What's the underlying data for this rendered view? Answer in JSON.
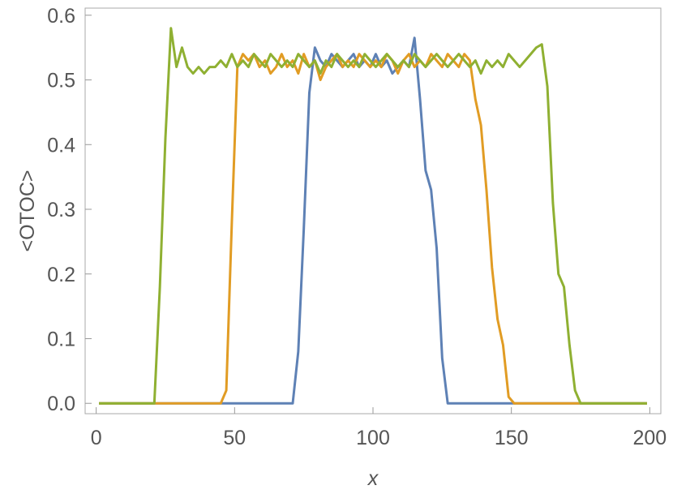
{
  "chart_data": {
    "type": "line",
    "x_label": "x",
    "y_label": "<OTOC>",
    "xlim": [
      -4,
      204
    ],
    "ylim": [
      -0.016,
      0.611
    ],
    "xticks": [
      0,
      50,
      100,
      150,
      200
    ],
    "yticks": [
      {
        "value": 0,
        "label": "0.0"
      },
      0.1,
      0.2,
      0.3,
      0.4,
      0.5,
      0.6
    ],
    "x": [
      1,
      3,
      5,
      7,
      9,
      11,
      13,
      15,
      17,
      19,
      21,
      23,
      25,
      27,
      29,
      31,
      33,
      35,
      37,
      39,
      41,
      43,
      45,
      47,
      49,
      51,
      53,
      55,
      57,
      59,
      61,
      63,
      65,
      67,
      69,
      71,
      73,
      75,
      77,
      79,
      81,
      83,
      85,
      87,
      89,
      91,
      93,
      95,
      97,
      99,
      101,
      103,
      105,
      107,
      109,
      111,
      113,
      115,
      117,
      119,
      121,
      123,
      125,
      127,
      129,
      131,
      133,
      135,
      137,
      139,
      141,
      143,
      145,
      147,
      149,
      151,
      153,
      155,
      157,
      159,
      161,
      163,
      165,
      167,
      169,
      171,
      173,
      175,
      177,
      179,
      181,
      183,
      185,
      187,
      189,
      191,
      193,
      195,
      197,
      199
    ],
    "series": [
      {
        "color": "#5e81b5",
        "values": [
          0,
          0,
          0,
          0,
          0,
          0,
          0,
          0,
          0,
          0,
          0,
          0,
          0,
          0,
          0,
          0,
          0,
          0,
          0,
          0,
          0,
          0,
          0,
          0,
          0,
          0,
          0,
          0,
          0,
          0,
          0,
          0,
          0,
          0,
          0,
          0,
          0.08,
          0.27,
          0.48,
          0.55,
          0.53,
          0.52,
          0.54,
          0.53,
          0.52,
          0.53,
          0.54,
          0.52,
          0.53,
          0.52,
          0.54,
          0.52,
          0.53,
          0.51,
          0.52,
          0.53,
          0.52,
          0.565,
          0.47,
          0.36,
          0.33,
          0.24,
          0.07,
          0,
          0,
          0,
          0,
          0,
          0,
          0,
          0,
          0,
          0,
          0,
          0,
          0,
          0,
          0,
          0,
          0,
          0,
          0,
          0,
          0,
          0,
          0,
          0,
          0,
          0,
          0,
          0,
          0,
          0,
          0,
          0,
          0,
          0,
          0,
          0,
          0
        ]
      },
      {
        "color": "#e19c24",
        "values": [
          0,
          0,
          0,
          0,
          0,
          0,
          0,
          0,
          0,
          0,
          0,
          0,
          0,
          0,
          0,
          0,
          0,
          0,
          0,
          0,
          0,
          0,
          0,
          0.02,
          0.28,
          0.52,
          0.54,
          0.53,
          0.54,
          0.52,
          0.53,
          0.51,
          0.52,
          0.54,
          0.52,
          0.53,
          0.51,
          0.54,
          0.52,
          0.53,
          0.5,
          0.52,
          0.53,
          0.54,
          0.52,
          0.53,
          0.52,
          0.54,
          0.53,
          0.52,
          0.53,
          0.52,
          0.54,
          0.53,
          0.51,
          0.53,
          0.54,
          0.52,
          0.53,
          0.52,
          0.54,
          0.53,
          0.52,
          0.54,
          0.53,
          0.52,
          0.54,
          0.53,
          0.47,
          0.43,
          0.33,
          0.21,
          0.13,
          0.09,
          0.01,
          0,
          0,
          0,
          0,
          0,
          0,
          0,
          0,
          0,
          0,
          0,
          0,
          0,
          0,
          0,
          0,
          0,
          0,
          0,
          0,
          0,
          0,
          0,
          0,
          0
        ]
      },
      {
        "color": "#8fb032",
        "values": [
          0,
          0,
          0,
          0,
          0,
          0,
          0,
          0,
          0,
          0,
          0,
          0.18,
          0.41,
          0.58,
          0.52,
          0.55,
          0.52,
          0.51,
          0.52,
          0.51,
          0.52,
          0.52,
          0.53,
          0.52,
          0.54,
          0.52,
          0.53,
          0.52,
          0.54,
          0.53,
          0.52,
          0.54,
          0.53,
          0.52,
          0.53,
          0.52,
          0.54,
          0.53,
          0.52,
          0.53,
          0.51,
          0.53,
          0.52,
          0.54,
          0.53,
          0.52,
          0.53,
          0.52,
          0.54,
          0.53,
          0.52,
          0.53,
          0.54,
          0.53,
          0.52,
          0.53,
          0.52,
          0.54,
          0.53,
          0.52,
          0.53,
          0.54,
          0.53,
          0.52,
          0.53,
          0.54,
          0.53,
          0.52,
          0.53,
          0.51,
          0.53,
          0.52,
          0.53,
          0.52,
          0.54,
          0.53,
          0.52,
          0.53,
          0.54,
          0.55,
          0.555,
          0.49,
          0.31,
          0.2,
          0.18,
          0.09,
          0.02,
          0,
          0,
          0,
          0,
          0,
          0,
          0,
          0,
          0,
          0,
          0,
          0,
          0
        ]
      }
    ]
  }
}
